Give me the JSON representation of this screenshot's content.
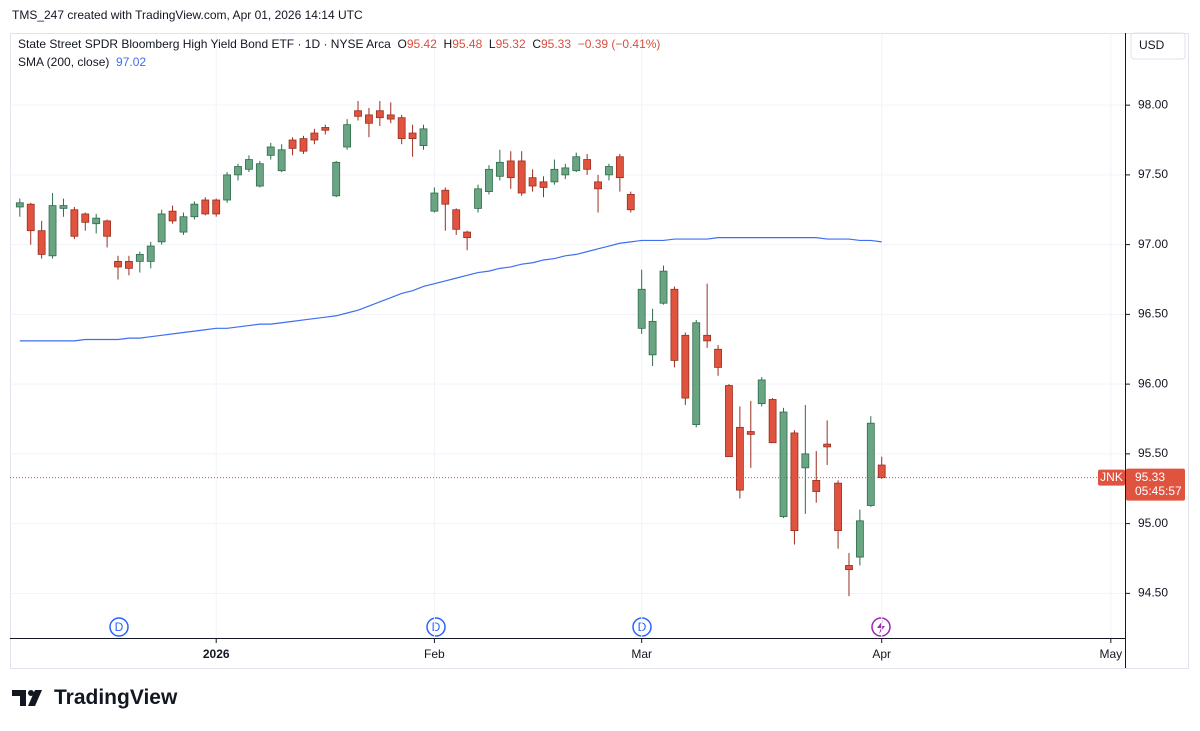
{
  "header": "TMS_247 created with TradingView.com, Apr 01, 2026 14:14 UTC",
  "legend": {
    "title": "State Street SPDR Bloomberg High Yield Bond ETF · 1D · NYSE Arca",
    "open_label": "O",
    "high_label": "H",
    "low_label": "L",
    "close_label": "C",
    "change": "−0.39 (−0.41%)"
  },
  "currency": "USD",
  "symbol": "JNK",
  "countdown": "05:45:57",
  "markers": [
    "D",
    "D",
    "D"
  ],
  "logo": "TradingView",
  "chart_data": {
    "type": "candlestick",
    "up_color": "#6aa583",
    "up_border": "#2f6b4b",
    "down_color": "#e0533f",
    "down_border": "#9a2e20",
    "open": [
      97.27,
      97.29,
      97.1,
      96.92,
      97.26,
      97.25,
      97.22,
      97.15,
      97.17,
      96.88,
      96.88,
      96.88,
      96.88,
      97.02,
      97.24,
      97.09,
      97.2,
      97.32,
      97.32,
      97.32,
      97.5,
      97.54,
      97.42,
      97.64,
      97.53,
      97.75,
      97.76,
      97.8,
      97.84,
      97.35,
      97.7,
      97.96,
      97.93,
      97.96,
      97.93,
      97.91,
      97.8,
      97.71,
      97.24,
      97.39,
      97.25,
      97.09,
      97.26,
      97.38,
      97.49,
      97.6,
      97.6,
      97.48,
      97.45,
      97.45,
      97.5,
      97.53,
      97.61,
      97.45,
      97.5,
      97.63,
      97.36,
      96.4,
      96.21,
      96.58,
      96.68,
      96.35,
      95.71,
      96.35,
      96.25,
      95.99,
      95.69,
      95.66,
      95.86,
      95.89,
      95.05,
      95.65,
      95.4,
      95.31,
      95.57,
      95.29,
      94.7,
      94.76,
      95.13,
      95.42
    ],
    "high": [
      97.33,
      97.3,
      97.17,
      97.37,
      97.33,
      97.27,
      97.23,
      97.22,
      97.18,
      96.92,
      96.92,
      96.95,
      97.02,
      97.25,
      97.28,
      97.23,
      97.31,
      97.34,
      97.33,
      97.52,
      97.58,
      97.64,
      97.6,
      97.73,
      97.72,
      97.77,
      97.78,
      97.83,
      97.86,
      97.6,
      97.9,
      98.03,
      97.98,
      98.03,
      98.02,
      97.93,
      97.86,
      97.86,
      97.41,
      97.41,
      97.26,
      97.1,
      97.43,
      97.57,
      97.68,
      97.67,
      97.67,
      97.54,
      97.49,
      97.61,
      97.58,
      97.66,
      97.65,
      97.5,
      97.58,
      97.65,
      97.38,
      96.82,
      96.54,
      96.85,
      96.7,
      96.37,
      96.46,
      96.72,
      96.28,
      96.0,
      95.84,
      95.88,
      96.05,
      95.9,
      95.83,
      95.67,
      95.85,
      95.52,
      95.74,
      95.31,
      94.79,
      95.1,
      95.77,
      95.48
    ],
    "low": [
      97.2,
      97.0,
      96.9,
      96.9,
      97.2,
      97.04,
      97.1,
      97.08,
      96.98,
      96.75,
      96.78,
      96.8,
      96.83,
      97.0,
      97.15,
      97.07,
      97.18,
      97.21,
      97.2,
      97.3,
      97.46,
      97.52,
      97.41,
      97.61,
      97.52,
      97.64,
      97.65,
      97.72,
      97.79,
      97.34,
      97.68,
      97.89,
      97.77,
      97.85,
      97.87,
      97.72,
      97.63,
      97.68,
      97.23,
      97.1,
      97.07,
      96.96,
      97.23,
      97.36,
      97.46,
      97.4,
      97.35,
      97.38,
      97.34,
      97.43,
      97.47,
      97.52,
      97.5,
      97.23,
      97.46,
      97.38,
      97.23,
      96.36,
      96.13,
      96.57,
      96.12,
      95.85,
      95.69,
      96.26,
      96.06,
      95.48,
      95.18,
      95.4,
      95.84,
      95.58,
      95.04,
      94.85,
      95.07,
      95.15,
      95.42,
      94.82,
      94.48,
      94.7,
      95.12,
      95.32
    ],
    "close": [
      97.3,
      97.1,
      96.93,
      97.28,
      97.28,
      97.06,
      97.16,
      97.19,
      97.06,
      96.84,
      96.83,
      96.93,
      96.99,
      97.22,
      97.17,
      97.2,
      97.29,
      97.22,
      97.22,
      97.5,
      97.56,
      97.61,
      97.58,
      97.7,
      97.68,
      97.69,
      97.67,
      97.75,
      97.82,
      97.59,
      97.86,
      97.92,
      97.87,
      97.91,
      97.9,
      97.76,
      97.76,
      97.83,
      97.37,
      97.29,
      97.11,
      97.05,
      97.4,
      97.54,
      97.59,
      97.48,
      97.37,
      97.42,
      97.41,
      97.54,
      97.55,
      97.63,
      97.54,
      97.4,
      97.56,
      97.48,
      97.25,
      96.68,
      96.45,
      96.81,
      96.17,
      95.9,
      96.44,
      96.31,
      96.12,
      95.48,
      95.24,
      95.64,
      96.03,
      95.58,
      95.8,
      94.95,
      95.5,
      95.23,
      95.55,
      94.95,
      94.67,
      95.02,
      95.72,
      95.33
    ],
    "overlays": [
      {
        "name": "SMA (200, close)",
        "color": "#3d6ff0",
        "values": [
          96.31,
          96.31,
          96.31,
          96.31,
          96.31,
          96.31,
          96.32,
          96.32,
          96.32,
          96.32,
          96.33,
          96.33,
          96.34,
          96.35,
          96.36,
          96.37,
          96.38,
          96.39,
          96.4,
          96.4,
          96.41,
          96.42,
          96.43,
          96.43,
          96.44,
          96.45,
          96.46,
          96.47,
          96.48,
          96.49,
          96.51,
          96.53,
          96.56,
          96.59,
          96.62,
          96.65,
          96.67,
          96.7,
          96.72,
          96.74,
          96.76,
          96.78,
          96.8,
          96.81,
          96.83,
          96.84,
          96.86,
          96.87,
          96.89,
          96.9,
          96.92,
          96.93,
          96.95,
          96.97,
          96.99,
          97.01,
          97.02,
          97.03,
          97.03,
          97.03,
          97.04,
          97.04,
          97.04,
          97.04,
          97.05,
          97.05,
          97.05,
          97.05,
          97.05,
          97.05,
          97.05,
          97.05,
          97.05,
          97.05,
          97.04,
          97.04,
          97.04,
          97.03,
          97.03,
          97.02
        ]
      }
    ],
    "xlim": [
      -0.9,
      101.3
    ],
    "xticks": [
      {
        "value": 18,
        "label": "2026"
      },
      {
        "value": 38,
        "label": "Feb"
      },
      {
        "value": 57,
        "label": "Mar"
      },
      {
        "value": 79,
        "label": "Apr"
      },
      {
        "value": 100,
        "label": "May"
      }
    ],
    "ylim": [
      94.18,
      98.51
    ],
    "yticks": [
      {
        "value": 94.5,
        "label": "94.50"
      },
      {
        "value": 95,
        "label": "95.00"
      },
      {
        "value": 95.5,
        "label": "95.50"
      },
      {
        "value": 96,
        "label": "96.00"
      },
      {
        "value": 96.5,
        "label": "96.50"
      },
      {
        "value": 97,
        "label": "97.00"
      },
      {
        "value": 97.5,
        "label": "97.50"
      },
      {
        "value": 98,
        "label": "98.00"
      }
    ],
    "grid": true
  }
}
